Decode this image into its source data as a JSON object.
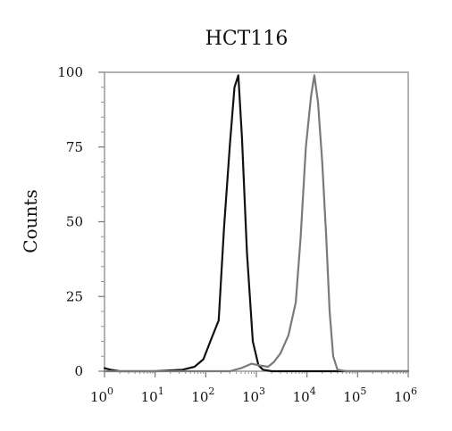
{
  "chart_data": {
    "type": "line",
    "title": "HCT116",
    "ylabel": "Counts",
    "xlabel": "",
    "x_scale": "log",
    "xlim": [
      1,
      1000000
    ],
    "ylim": [
      0,
      100
    ],
    "x_ticks": [
      {
        "value": 1,
        "base": "10",
        "exp": "0"
      },
      {
        "value": 10,
        "base": "10",
        "exp": "1"
      },
      {
        "value": 100,
        "base": "10",
        "exp": "2"
      },
      {
        "value": 1000,
        "base": "10",
        "exp": "3"
      },
      {
        "value": 10000,
        "base": "10",
        "exp": "4"
      },
      {
        "value": 100000,
        "base": "10",
        "exp": "5"
      },
      {
        "value": 1000000,
        "base": "10",
        "exp": "6"
      }
    ],
    "y_ticks": [
      0,
      25,
      50,
      75,
      100
    ],
    "grid": false,
    "legend": "none",
    "series": [
      {
        "color": "#111111",
        "points": [
          [
            1,
            1
          ],
          [
            1.3,
            0.5
          ],
          [
            2,
            0
          ],
          [
            10,
            0
          ],
          [
            35,
            0.5
          ],
          [
            60,
            1.5
          ],
          [
            90,
            4
          ],
          [
            130,
            11
          ],
          [
            180,
            17
          ],
          [
            230,
            48
          ],
          [
            300,
            76
          ],
          [
            370,
            95
          ],
          [
            440,
            99
          ],
          [
            520,
            78
          ],
          [
            650,
            40
          ],
          [
            850,
            10
          ],
          [
            1100,
            2
          ],
          [
            1350,
            0.5
          ],
          [
            2000,
            0
          ],
          [
            1000000,
            0
          ]
        ]
      },
      {
        "color": "#7a7a7a",
        "points": [
          [
            1,
            0
          ],
          [
            300,
            0
          ],
          [
            500,
            1
          ],
          [
            800,
            2.5
          ],
          [
            1100,
            2
          ],
          [
            1700,
            1.5
          ],
          [
            2200,
            3
          ],
          [
            3000,
            6
          ],
          [
            4300,
            12
          ],
          [
            6000,
            23
          ],
          [
            7500,
            45
          ],
          [
            9500,
            75
          ],
          [
            12000,
            92
          ],
          [
            14000,
            99
          ],
          [
            16500,
            90
          ],
          [
            20000,
            70
          ],
          [
            24000,
            45
          ],
          [
            28000,
            20
          ],
          [
            33000,
            5
          ],
          [
            40000,
            0.5
          ],
          [
            60000,
            0
          ],
          [
            1000000,
            0
          ]
        ]
      }
    ]
  }
}
